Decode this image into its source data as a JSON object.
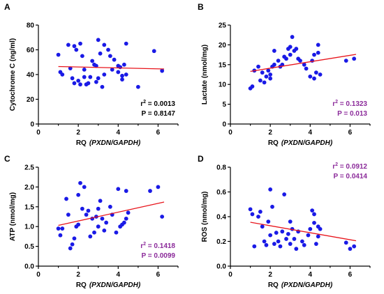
{
  "chart_data": [
    {
      "panel": "A",
      "type": "scatter",
      "xlabel_prefix": "RQ",
      "xlabel_italic": "(PXDN/GAPDH)",
      "ylabel": "Cytochrome C (ng/ml)",
      "xlim": [
        0,
        7
      ],
      "ylim": [
        0,
        80
      ],
      "xticks": [
        0,
        2,
        4,
        6
      ],
      "yticks": [
        0,
        20,
        40,
        60,
        80
      ],
      "stats": [
        {
          "base": "r",
          "sup": "2",
          "rest": " = 0.0013"
        },
        {
          "base": "P = 0.8147",
          "sup": "",
          "rest": ""
        }
      ],
      "stats_color": "#000000",
      "stats_position": "bottom-right",
      "fit": [
        [
          1.0,
          46.5
        ],
        [
          6.3,
          44.5
        ]
      ],
      "points": [
        [
          1.0,
          56
        ],
        [
          1.1,
          42
        ],
        [
          1.2,
          40
        ],
        [
          1.5,
          64
        ],
        [
          1.6,
          45
        ],
        [
          1.7,
          37
        ],
        [
          1.8,
          33
        ],
        [
          1.8,
          63
        ],
        [
          1.9,
          60
        ],
        [
          2.0,
          35
        ],
        [
          2.1,
          32
        ],
        [
          2.1,
          65
        ],
        [
          2.2,
          55
        ],
        [
          2.3,
          44
        ],
        [
          2.3,
          38
        ],
        [
          2.4,
          32
        ],
        [
          2.5,
          33
        ],
        [
          2.6,
          38
        ],
        [
          2.7,
          51
        ],
        [
          2.8,
          48
        ],
        [
          2.9,
          34
        ],
        [
          2.9,
          47
        ],
        [
          3.0,
          37
        ],
        [
          3.0,
          68
        ],
        [
          3.1,
          57
        ],
        [
          3.2,
          30
        ],
        [
          3.3,
          40
        ],
        [
          3.3,
          64
        ],
        [
          3.5,
          60
        ],
        [
          3.6,
          55
        ],
        [
          3.7,
          44
        ],
        [
          3.8,
          52
        ],
        [
          4.0,
          47
        ],
        [
          4.0,
          42
        ],
        [
          4.1,
          46
        ],
        [
          4.2,
          39
        ],
        [
          4.2,
          36
        ],
        [
          4.3,
          48
        ],
        [
          4.4,
          40
        ],
        [
          4.4,
          65
        ],
        [
          5.0,
          30
        ],
        [
          5.8,
          59
        ],
        [
          6.2,
          43
        ]
      ]
    },
    {
      "panel": "B",
      "type": "scatter",
      "xlabel_prefix": "RQ",
      "xlabel_italic": "(PXDN/GAPDH)",
      "ylabel": "Lactate (nmol/mg)",
      "xlim": [
        0,
        7
      ],
      "ylim": [
        0,
        25
      ],
      "xticks": [
        0,
        2,
        4,
        6
      ],
      "yticks": [
        0,
        5,
        10,
        15,
        20,
        25
      ],
      "stats": [
        {
          "base": "r",
          "sup": "2",
          "rest": " = 0.1323"
        },
        {
          "base": "P = 0.013",
          "sup": "",
          "rest": ""
        }
      ],
      "stats_color": "#8b2a9a",
      "stats_position": "bottom-right",
      "fit": [
        [
          1.0,
          13.3
        ],
        [
          6.3,
          17.6
        ]
      ],
      "points": [
        [
          1.0,
          9
        ],
        [
          1.1,
          9.5
        ],
        [
          1.2,
          13.5
        ],
        [
          1.4,
          14.5
        ],
        [
          1.5,
          11
        ],
        [
          1.6,
          13
        ],
        [
          1.7,
          10.5
        ],
        [
          1.8,
          12
        ],
        [
          1.9,
          13.5
        ],
        [
          2.0,
          11.5
        ],
        [
          2.0,
          12.5
        ],
        [
          2.1,
          14.5
        ],
        [
          2.2,
          15
        ],
        [
          2.2,
          18.5
        ],
        [
          2.4,
          16
        ],
        [
          2.5,
          14.5
        ],
        [
          2.6,
          15
        ],
        [
          2.7,
          17
        ],
        [
          2.8,
          16.5
        ],
        [
          2.9,
          19
        ],
        [
          3.0,
          17.5
        ],
        [
          3.0,
          19.5
        ],
        [
          3.1,
          22
        ],
        [
          3.2,
          18.5
        ],
        [
          3.3,
          19
        ],
        [
          3.4,
          16.5
        ],
        [
          3.5,
          16
        ],
        [
          3.7,
          15
        ],
        [
          3.8,
          14
        ],
        [
          4.0,
          12
        ],
        [
          4.1,
          16
        ],
        [
          4.2,
          11.5
        ],
        [
          4.2,
          17.5
        ],
        [
          4.3,
          13
        ],
        [
          4.4,
          18
        ],
        [
          4.4,
          20
        ],
        [
          4.5,
          12.5
        ],
        [
          5.8,
          16
        ],
        [
          6.2,
          16.5
        ]
      ]
    },
    {
      "panel": "C",
      "type": "scatter",
      "xlabel_prefix": "RQ",
      "xlabel_italic": "(PXDN/GAPDH)",
      "ylabel": "ATP (nmol/mg)",
      "xlim": [
        0,
        7
      ],
      "ylim": [
        0,
        2.5
      ],
      "xticks": [
        0,
        2,
        4,
        6
      ],
      "yticks": [
        0,
        0.5,
        1.0,
        1.5,
        2.0,
        2.5
      ],
      "ytick_labels": [
        "0.0",
        "0.5",
        "1.0",
        "1.5",
        "2.0",
        "2.5"
      ],
      "stats": [
        {
          "base": "r",
          "sup": "2",
          "rest": " = 0.1418"
        },
        {
          "base": "P = 0.0099",
          "sup": "",
          "rest": ""
        }
      ],
      "stats_color": "#8b2a9a",
      "stats_position": "bottom-right",
      "fit": [
        [
          1.0,
          1.03
        ],
        [
          6.3,
          1.62
        ]
      ],
      "points": [
        [
          1.0,
          0.95
        ],
        [
          1.1,
          0.78
        ],
        [
          1.2,
          0.95
        ],
        [
          1.4,
          1.7
        ],
        [
          1.5,
          1.3
        ],
        [
          1.6,
          0.45
        ],
        [
          1.7,
          0.55
        ],
        [
          1.8,
          0.7
        ],
        [
          1.9,
          1.0
        ],
        [
          2.0,
          1.05
        ],
        [
          2.0,
          1.8
        ],
        [
          2.1,
          2.1
        ],
        [
          2.2,
          1.45
        ],
        [
          2.3,
          2.0
        ],
        [
          2.4,
          1.3
        ],
        [
          2.5,
          1.4
        ],
        [
          2.6,
          0.75
        ],
        [
          2.7,
          1.2
        ],
        [
          2.8,
          0.85
        ],
        [
          2.9,
          1.25
        ],
        [
          3.0,
          1.0
        ],
        [
          3.0,
          1.45
        ],
        [
          3.1,
          1.65
        ],
        [
          3.2,
          1.2
        ],
        [
          3.3,
          0.9
        ],
        [
          3.4,
          1.1
        ],
        [
          3.6,
          1.5
        ],
        [
          3.7,
          1.3
        ],
        [
          3.9,
          0.85
        ],
        [
          4.0,
          1.95
        ],
        [
          4.1,
          1.0
        ],
        [
          4.2,
          1.05
        ],
        [
          4.3,
          1.1
        ],
        [
          4.4,
          1.2
        ],
        [
          4.4,
          1.9
        ],
        [
          4.5,
          1.35
        ],
        [
          5.6,
          1.9
        ],
        [
          6.0,
          2.0
        ],
        [
          6.2,
          1.25
        ]
      ]
    },
    {
      "panel": "D",
      "type": "scatter",
      "xlabel_prefix": "RQ",
      "xlabel_italic": "(PXDN/GAPDH)",
      "ylabel": "ROS (nmol/mg)",
      "xlim": [
        0,
        7
      ],
      "ylim": [
        0,
        0.8
      ],
      "xticks": [
        0,
        2,
        4,
        6
      ],
      "yticks": [
        0,
        0.2,
        0.4,
        0.6,
        0.8
      ],
      "ytick_labels": [
        "0.0",
        "0.2",
        "0.4",
        "0.6",
        "0.8"
      ],
      "stats": [
        {
          "base": "r",
          "sup": "2",
          "rest": " = 0.0912"
        },
        {
          "base": "P = 0.0414",
          "sup": "",
          "rest": ""
        }
      ],
      "stats_color": "#8b2a9a",
      "stats_position": "top-right",
      "fit": [
        [
          1.0,
          0.355
        ],
        [
          6.3,
          0.205
        ]
      ],
      "points": [
        [
          1.0,
          0.46
        ],
        [
          1.1,
          0.42
        ],
        [
          1.2,
          0.16
        ],
        [
          1.4,
          0.4
        ],
        [
          1.5,
          0.44
        ],
        [
          1.6,
          0.32
        ],
        [
          1.7,
          0.2
        ],
        [
          1.8,
          0.17
        ],
        [
          1.9,
          0.36
        ],
        [
          2.0,
          0.62
        ],
        [
          2.0,
          0.25
        ],
        [
          2.1,
          0.48
        ],
        [
          2.2,
          0.18
        ],
        [
          2.3,
          0.27
        ],
        [
          2.4,
          0.2
        ],
        [
          2.5,
          0.16
        ],
        [
          2.6,
          0.28
        ],
        [
          2.7,
          0.58
        ],
        [
          2.8,
          0.22
        ],
        [
          2.9,
          0.26
        ],
        [
          3.0,
          0.18
        ],
        [
          3.0,
          0.36
        ],
        [
          3.1,
          0.3
        ],
        [
          3.2,
          0.22
        ],
        [
          3.3,
          0.14
        ],
        [
          3.4,
          0.28
        ],
        [
          3.6,
          0.2
        ],
        [
          3.7,
          0.17
        ],
        [
          3.9,
          0.25
        ],
        [
          4.0,
          0.3
        ],
        [
          4.1,
          0.45
        ],
        [
          4.2,
          0.42
        ],
        [
          4.2,
          0.35
        ],
        [
          4.3,
          0.18
        ],
        [
          4.4,
          0.32
        ],
        [
          4.4,
          0.24
        ],
        [
          4.5,
          0.3
        ],
        [
          5.8,
          0.19
        ],
        [
          6.0,
          0.14
        ],
        [
          6.2,
          0.16
        ]
      ]
    }
  ]
}
